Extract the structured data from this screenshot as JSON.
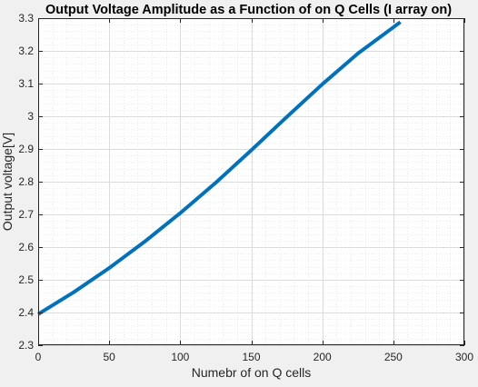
{
  "chart_data": {
    "type": "line",
    "title": "Output Voltage Amplitude as a Function of on Q Cells (I array on)",
    "xlabel": "Numebr of on Q cells",
    "ylabel": "Output voltage[V]",
    "xlim": [
      0,
      300
    ],
    "ylim": [
      2.3,
      3.3
    ],
    "xticks": [
      0,
      50,
      100,
      150,
      200,
      250,
      300
    ],
    "xtick_labels": [
      "0",
      "50",
      "100",
      "150",
      "200",
      "250",
      "300"
    ],
    "yticks": [
      2.3,
      2.4,
      2.5,
      2.6,
      2.7,
      2.8,
      2.9,
      3,
      3.1,
      3.2,
      3.3
    ],
    "ytick_labels": [
      "2.3",
      "2.4",
      "2.5",
      "2.6",
      "2.7",
      "2.8",
      "2.9",
      "3",
      "3.1",
      "3.2",
      "3.3"
    ],
    "grid": true,
    "minor_grid": true,
    "series": [
      {
        "color": "#0072BD",
        "x": [
          0,
          25,
          50,
          75,
          100,
          125,
          150,
          175,
          200,
          225,
          255
        ],
        "y": [
          2.395,
          2.462,
          2.536,
          2.617,
          2.704,
          2.797,
          2.896,
          2.998,
          3.098,
          3.192,
          3.288
        ]
      }
    ]
  }
}
